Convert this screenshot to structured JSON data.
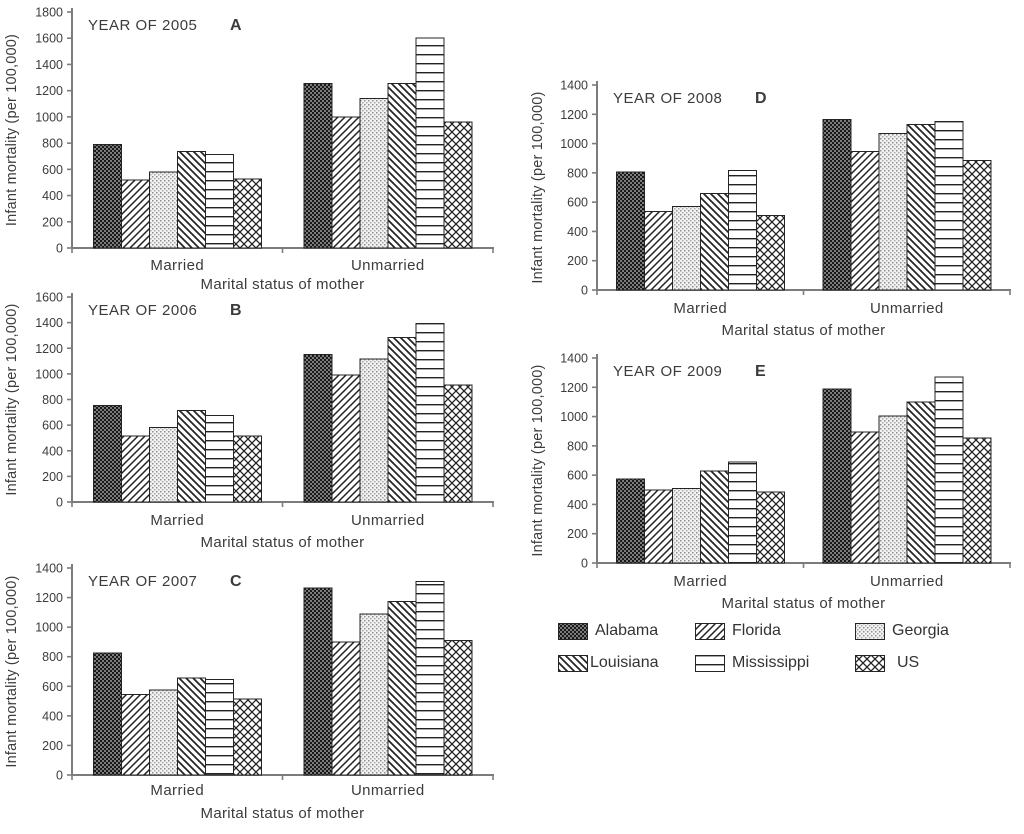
{
  "page": {
    "background": "#ffffff",
    "text_color": "#3c3c3c",
    "axis_color": "#7c7c7c",
    "bar_outline_color": "#242424"
  },
  "patterns": {
    "Alabama": "dark-crosshatch",
    "Florida": "diagonal-up",
    "Georgia": "stipple-dots",
    "Louisiana": "diagonal-down",
    "Mississippi": "horizontal-lines",
    "US": "diamond-crosshatch"
  },
  "legend": {
    "items": [
      {
        "label": "Alabama",
        "pattern": "dark-crosshatch"
      },
      {
        "label": "Florida",
        "pattern": "diagonal-up"
      },
      {
        "label": "Georgia",
        "pattern": "stipple-dots"
      },
      {
        "label": "Louisiana",
        "pattern": "diagonal-down"
      },
      {
        "label": "Mississippi",
        "pattern": "horizontal-lines"
      },
      {
        "label": "US",
        "pattern": "diamond-crosshatch"
      }
    ]
  },
  "chart_data": [
    {
      "type": "bar",
      "panel": "A",
      "title": "YEAR OF 2005",
      "xlabel": "Marital status of mother",
      "ylabel": "Infant mortality (per 100,000)",
      "categories": [
        "Married",
        "Unmarried"
      ],
      "ylim": [
        0,
        1800
      ],
      "ytick_step": 200,
      "legend_position": "none",
      "grid": false,
      "series": [
        {
          "name": "Alabama",
          "values": [
            790,
            1255
          ]
        },
        {
          "name": "Florida",
          "values": [
            520,
            1000
          ]
        },
        {
          "name": "Georgia",
          "values": [
            580,
            1140
          ]
        },
        {
          "name": "Louisiana",
          "values": [
            735,
            1255
          ]
        },
        {
          "name": "Mississippi",
          "values": [
            715,
            1600
          ]
        },
        {
          "name": "US",
          "values": [
            525,
            960
          ]
        }
      ]
    },
    {
      "type": "bar",
      "panel": "B",
      "title": "YEAR OF 2006",
      "xlabel": "Marital status of mother",
      "ylabel": "Infant mortality (per 100,000)",
      "categories": [
        "Married",
        "Unmarried"
      ],
      "ylim": [
        0,
        1600
      ],
      "ytick_step": 200,
      "legend_position": "none",
      "grid": false,
      "series": [
        {
          "name": "Alabama",
          "values": [
            755,
            1150
          ]
        },
        {
          "name": "Florida",
          "values": [
            515,
            990
          ]
        },
        {
          "name": "Georgia",
          "values": [
            580,
            1115
          ]
        },
        {
          "name": "Louisiana",
          "values": [
            715,
            1285
          ]
        },
        {
          "name": "Mississippi",
          "values": [
            675,
            1395
          ]
        },
        {
          "name": "US",
          "values": [
            515,
            915
          ]
        }
      ]
    },
    {
      "type": "bar",
      "panel": "C",
      "title": "YEAR OF 2007",
      "xlabel": "Marital status of mother",
      "ylabel": "Infant mortality (per 100,000)",
      "categories": [
        "Married",
        "Unmarried"
      ],
      "ylim": [
        0,
        1400
      ],
      "ytick_step": 200,
      "legend_position": "none",
      "grid": false,
      "series": [
        {
          "name": "Alabama",
          "values": [
            825,
            1265
          ]
        },
        {
          "name": "Florida",
          "values": [
            545,
            900
          ]
        },
        {
          "name": "Georgia",
          "values": [
            575,
            1090
          ]
        },
        {
          "name": "Louisiana",
          "values": [
            655,
            1175
          ]
        },
        {
          "name": "Mississippi",
          "values": [
            645,
            1310
          ]
        },
        {
          "name": "US",
          "values": [
            515,
            910
          ]
        }
      ]
    },
    {
      "type": "bar",
      "panel": "D",
      "title": "YEAR OF 2008",
      "xlabel": "Marital status of mother",
      "ylabel": "Infant mortality (per 100,000)",
      "categories": [
        "Married",
        "Unmarried"
      ],
      "ylim": [
        0,
        1400
      ],
      "ytick_step": 200,
      "legend_position": "none",
      "grid": false,
      "series": [
        {
          "name": "Alabama",
          "values": [
            805,
            1165
          ]
        },
        {
          "name": "Florida",
          "values": [
            535,
            945
          ]
        },
        {
          "name": "Georgia",
          "values": [
            570,
            1070
          ]
        },
        {
          "name": "Louisiana",
          "values": [
            660,
            1130
          ]
        },
        {
          "name": "Mississippi",
          "values": [
            815,
            1150
          ]
        },
        {
          "name": "US",
          "values": [
            510,
            885
          ]
        }
      ]
    },
    {
      "type": "bar",
      "panel": "E",
      "title": "YEAR OF 2009",
      "xlabel": "Marital status of mother",
      "ylabel": "Infant mortality (per 100,000)",
      "categories": [
        "Married",
        "Unmarried"
      ],
      "ylim": [
        0,
        1400
      ],
      "ytick_step": 200,
      "legend_position": "none",
      "grid": false,
      "series": [
        {
          "name": "Alabama",
          "values": [
            575,
            1190
          ]
        },
        {
          "name": "Florida",
          "values": [
            500,
            895
          ]
        },
        {
          "name": "Georgia",
          "values": [
            510,
            1005
          ]
        },
        {
          "name": "Louisiana",
          "values": [
            630,
            1100
          ]
        },
        {
          "name": "Mississippi",
          "values": [
            690,
            1270
          ]
        },
        {
          "name": "US",
          "values": [
            485,
            855
          ]
        }
      ]
    }
  ]
}
